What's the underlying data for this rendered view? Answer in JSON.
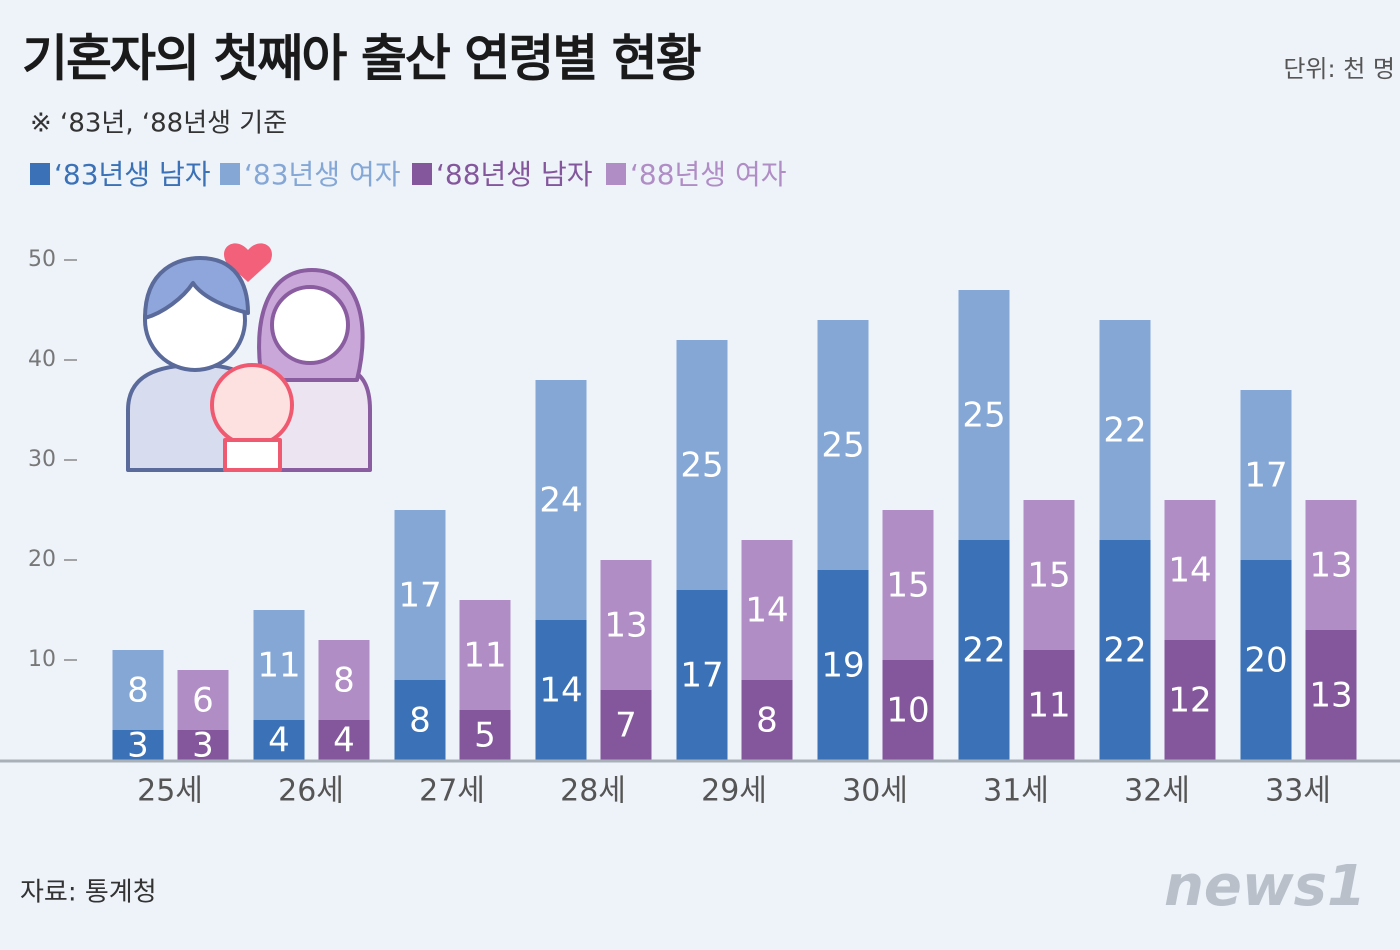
{
  "chart_data": {
    "type": "bar",
    "title": "기혼자의 첫째아 출산 연령별 현황",
    "subtitle": "※ ‘83년, ‘88년생 기준",
    "unit": "단위: 천 명",
    "source": "자료: 통계청",
    "logo": "news1",
    "categories": [
      "25세",
      "26세",
      "27세",
      "28세",
      "29세",
      "30세",
      "31세",
      "32세",
      "33세"
    ],
    "series": [
      {
        "name": "‘83년생 남자",
        "color": "#3a71b7",
        "values": [
          3,
          4,
          8,
          14,
          17,
          19,
          22,
          22,
          20
        ]
      },
      {
        "name": "‘83년생 여자",
        "color": "#84a7d6",
        "values": [
          8,
          11,
          17,
          24,
          25,
          25,
          25,
          22,
          17
        ]
      },
      {
        "name": "‘88년생 남자",
        "color": "#84579d",
        "values": [
          3,
          4,
          5,
          7,
          8,
          10,
          11,
          12,
          13
        ]
      },
      {
        "name": "‘88년생 여자",
        "color": "#b08dc5",
        "values": [
          6,
          8,
          11,
          13,
          14,
          15,
          15,
          14,
          13
        ]
      }
    ],
    "ylim": [
      0,
      50
    ],
    "yticks": [
      10,
      20,
      30,
      40,
      50
    ],
    "grid": false
  }
}
